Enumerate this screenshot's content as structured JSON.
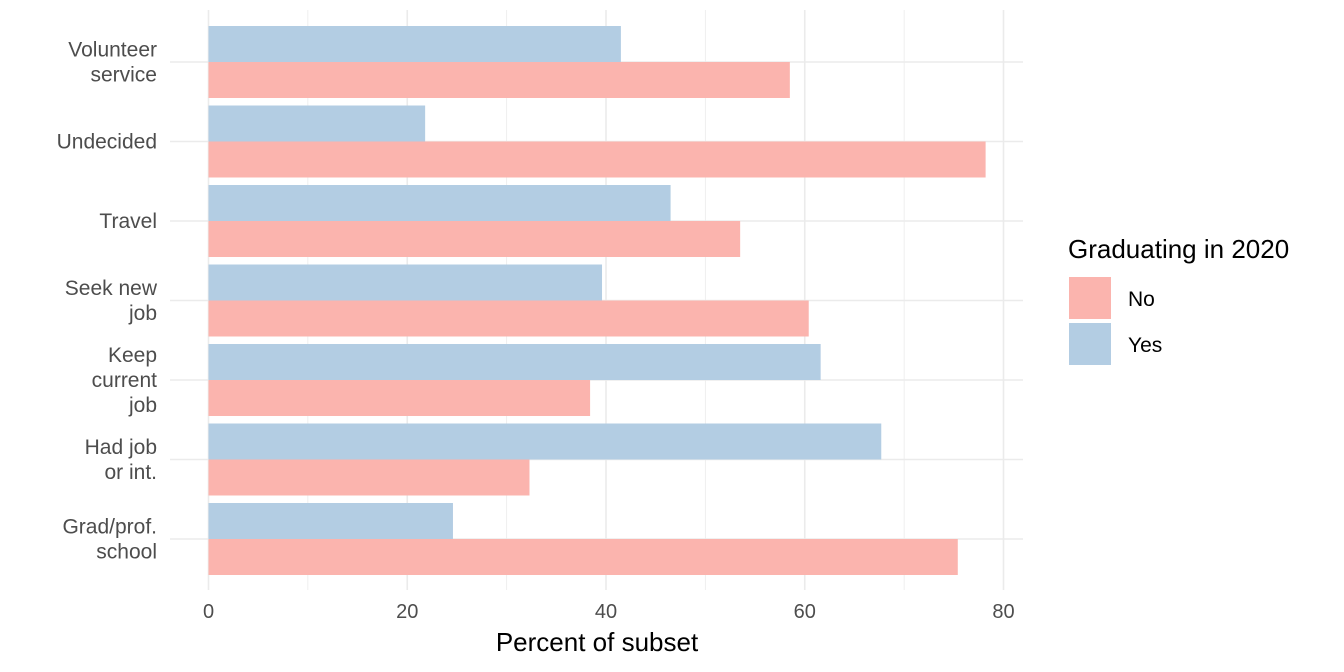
{
  "chart_data": {
    "type": "bar",
    "orientation": "horizontal",
    "categories": [
      "Volunteer\nservice",
      "Undecided",
      "Travel",
      "Seek new\njob",
      "Keep\ncurrent\njob",
      "Had job\nor int.",
      "Grad/prof.\nschool"
    ],
    "series": [
      {
        "name": "Yes",
        "values": [
          41.5,
          21.8,
          46.5,
          39.6,
          61.6,
          67.7,
          24.6
        ],
        "color": "#b3cde3"
      },
      {
        "name": "No",
        "values": [
          58.5,
          78.2,
          53.5,
          60.4,
          38.4,
          32.3,
          75.4
        ],
        "color": "#fbb4ae"
      }
    ],
    "xlabel": "Percent of subset",
    "ylabel": "",
    "xlim": [
      0,
      82
    ],
    "xticks": [
      0,
      20,
      40,
      60,
      80
    ],
    "grid": true,
    "legend": {
      "title": "Graduating in 2020",
      "position": "right",
      "entries": [
        {
          "label": "No",
          "color": "#fbb4ae"
        },
        {
          "label": "Yes",
          "color": "#b3cde3"
        }
      ]
    }
  }
}
